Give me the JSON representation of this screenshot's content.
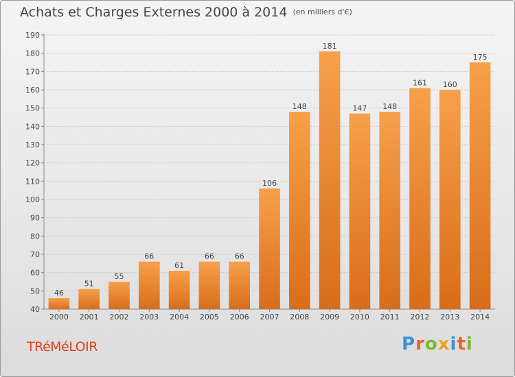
{
  "header": {
    "title": "Achats et Charges Externes 2000 à 2014",
    "subtitle": "(en milliers d'€)"
  },
  "footer": {
    "commune": "TRéMéLOIR",
    "logo_text": "Proxiti"
  },
  "colors": {
    "bar_light": "#f7a04a",
    "bar_dark": "#d86d1a",
    "grid": "#c8c8c8",
    "commune": "#e0421e",
    "logo_letters": [
      "#3e8ed8",
      "#e8632a",
      "#7cb832",
      "#f0a020",
      "#3e8ed8",
      "#e8632a",
      "#7cb832"
    ]
  },
  "chart_data": {
    "type": "bar",
    "categories": [
      "2000",
      "2001",
      "2002",
      "2003",
      "2004",
      "2005",
      "2006",
      "2007",
      "2008",
      "2009",
      "2010",
      "2011",
      "2012",
      "2013",
      "2014"
    ],
    "values": [
      46,
      51,
      55,
      66,
      61,
      66,
      66,
      106,
      148,
      181,
      147,
      148,
      161,
      160,
      175
    ],
    "ylim": [
      40,
      190
    ],
    "yticks": [
      40,
      50,
      60,
      70,
      80,
      90,
      100,
      110,
      120,
      130,
      140,
      150,
      160,
      170,
      180,
      190
    ],
    "grid": true,
    "legend": "none"
  }
}
